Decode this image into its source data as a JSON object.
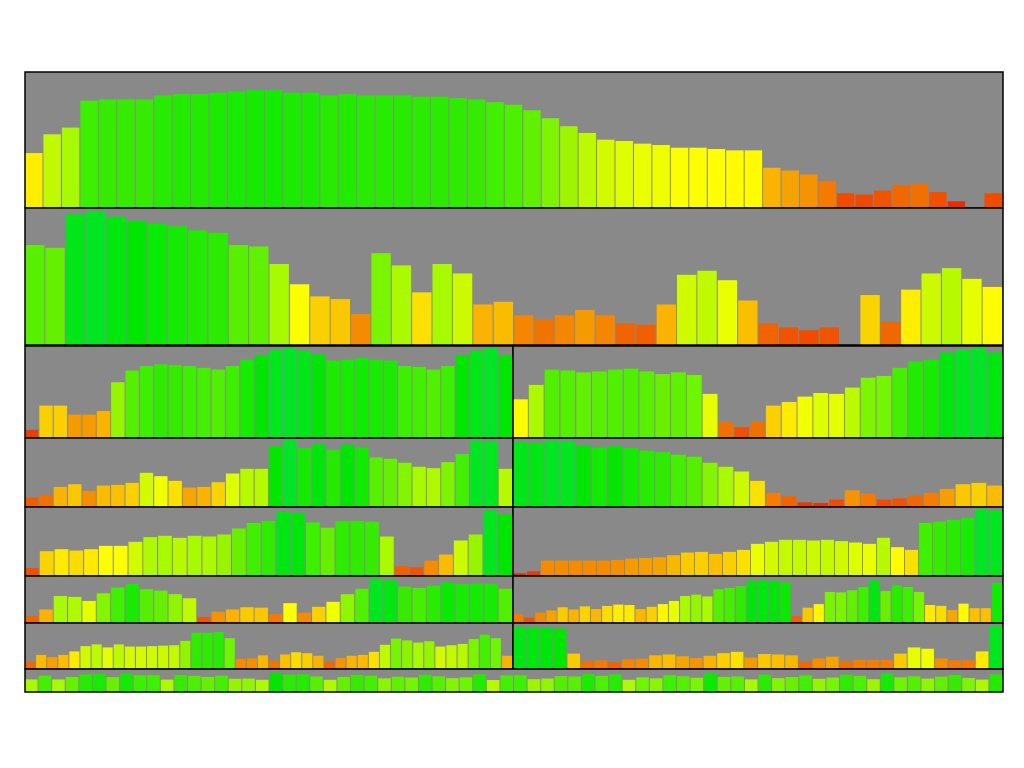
{
  "colors": {
    "panel_bg": "#898989",
    "background": "#ffffff",
    "border": "#000000"
  },
  "chart_data": [
    {
      "type": "bar",
      "title": "",
      "values": [
        41,
        55,
        60,
        80,
        81,
        81,
        81,
        84,
        85,
        85,
        86,
        87,
        88,
        88,
        86,
        86,
        84,
        85,
        84,
        84,
        84,
        83,
        83,
        82,
        81,
        79,
        77,
        73,
        67,
        61,
        56,
        51,
        50,
        48,
        47,
        45,
        45,
        44,
        43,
        43,
        30,
        28,
        25,
        20,
        11,
        10,
        13,
        17,
        18,
        12,
        5,
        0,
        11
      ]
    },
    {
      "type": "bar",
      "title": "",
      "values": [
        74,
        72,
        97,
        99,
        95,
        92,
        90,
        88,
        85,
        83,
        74,
        73,
        60,
        45,
        36,
        34,
        23,
        68,
        59,
        39,
        60,
        53,
        30,
        32,
        22,
        19,
        22,
        26,
        22,
        16,
        15,
        30,
        52,
        55,
        48,
        33,
        16,
        13,
        11,
        13,
        0,
        37,
        17,
        41,
        53,
        57,
        49,
        43
      ]
    },
    {
      "type": "bar",
      "title": "",
      "values": [
        9,
        36,
        36,
        26,
        26,
        30,
        62,
        75,
        80,
        82,
        81,
        80,
        78,
        76,
        80,
        87,
        92,
        98,
        100,
        97,
        93,
        86,
        87,
        89,
        87,
        86,
        80,
        79,
        76,
        80,
        92,
        97,
        100,
        92
      ]
    },
    {
      "type": "bar",
      "title": "",
      "values": [
        43,
        59,
        76,
        75,
        73,
        74,
        76,
        77,
        74,
        71,
        73,
        70,
        49,
        18,
        12,
        18,
        36,
        40,
        46,
        50,
        49,
        56,
        67,
        69,
        78,
        85,
        87,
        95,
        98,
        100,
        95
      ]
    },
    {
      "type": "bar",
      "title": "",
      "values": [
        14,
        18,
        30,
        34,
        24,
        32,
        33,
        36,
        51,
        46,
        39,
        29,
        30,
        37,
        50,
        57,
        57,
        91,
        100,
        88,
        94,
        85,
        93,
        89,
        74,
        72,
        66,
        60,
        58,
        67,
        79,
        99,
        98,
        57
      ]
    },
    {
      "type": "bar",
      "title": "",
      "values": [
        97,
        96,
        99,
        98,
        92,
        89,
        91,
        88,
        84,
        82,
        78,
        75,
        66,
        60,
        53,
        39,
        21,
        16,
        7,
        6,
        11,
        25,
        20,
        11,
        13,
        17,
        21,
        27,
        34,
        36,
        32
      ]
    },
    {
      "type": "bar",
      "title": "",
      "values": [
        12,
        37,
        40,
        38,
        40,
        45,
        45,
        51,
        58,
        60,
        57,
        60,
        59,
        62,
        71,
        79,
        82,
        96,
        94,
        80,
        72,
        82,
        82,
        81,
        59,
        15,
        13,
        23,
        32,
        53,
        62,
        98,
        92
      ]
    },
    {
      "type": "bar",
      "title": "",
      "values": [
        4,
        7,
        23,
        23,
        23,
        23,
        23,
        24,
        26,
        27,
        28,
        31,
        35,
        36,
        33,
        36,
        39,
        48,
        51,
        54,
        54,
        53,
        54,
        52,
        50,
        48,
        57,
        43,
        39,
        79,
        81,
        84,
        87,
        100,
        98
      ]
    },
    {
      "type": "bar",
      "title": "",
      "values": [
        16,
        30,
        60,
        58,
        49,
        66,
        79,
        87,
        75,
        72,
        64,
        55,
        13,
        25,
        30,
        35,
        34,
        20,
        44,
        23,
        36,
        47,
        64,
        76,
        98,
        95,
        81,
        78,
        83,
        90,
        87,
        88,
        87,
        76
      ]
    },
    {
      "type": "bar",
      "title": "",
      "values": [
        20,
        12,
        23,
        28,
        35,
        30,
        37,
        31,
        38,
        41,
        40,
        31,
        36,
        42,
        49,
        60,
        63,
        59,
        75,
        78,
        82,
        94,
        95,
        94,
        90,
        15,
        34,
        42,
        69,
        68,
        73,
        80,
        95,
        71,
        84,
        80,
        69,
        40,
        38,
        29,
        43,
        33,
        33,
        89
      ]
    },
    {
      "type": "bar",
      "title": "",
      "values": [
        17,
        32,
        27,
        32,
        40,
        52,
        56,
        49,
        56,
        51,
        51,
        52,
        53,
        54,
        64,
        82,
        82,
        84,
        70,
        23,
        24,
        31,
        19,
        33,
        38,
        36,
        30,
        17,
        25,
        30,
        32,
        39,
        55,
        69,
        65,
        60,
        63,
        51,
        54,
        57,
        68,
        78,
        70,
        30
      ]
    },
    {
      "type": "bar",
      "title": "",
      "values": [
        96,
        95,
        94,
        92,
        35,
        18,
        20,
        16,
        22,
        23,
        31,
        33,
        29,
        25,
        30,
        36,
        39,
        26,
        34,
        33,
        31,
        17,
        24,
        28,
        18,
        21,
        21,
        21,
        35,
        49,
        46,
        24,
        20,
        20,
        40,
        98
      ]
    },
    {
      "type": "bar",
      "title": "",
      "values": [
        60,
        78,
        60,
        72,
        84,
        87,
        71,
        88,
        80,
        80,
        59,
        81,
        77,
        72,
        78,
        63,
        64,
        58,
        91,
        83,
        85,
        74,
        58,
        72,
        81,
        78,
        65,
        73,
        69,
        82,
        75,
        66,
        70,
        85,
        57,
        79,
        80,
        61,
        64,
        76,
        74,
        86,
        77,
        84,
        58,
        70,
        65,
        80,
        75,
        68,
        90,
        72,
        74,
        60,
        83,
        66,
        71,
        79,
        63,
        69,
        82,
        77,
        61,
        88,
        70,
        75,
        64,
        73,
        81,
        67,
        59,
        85
      ]
    }
  ]
}
